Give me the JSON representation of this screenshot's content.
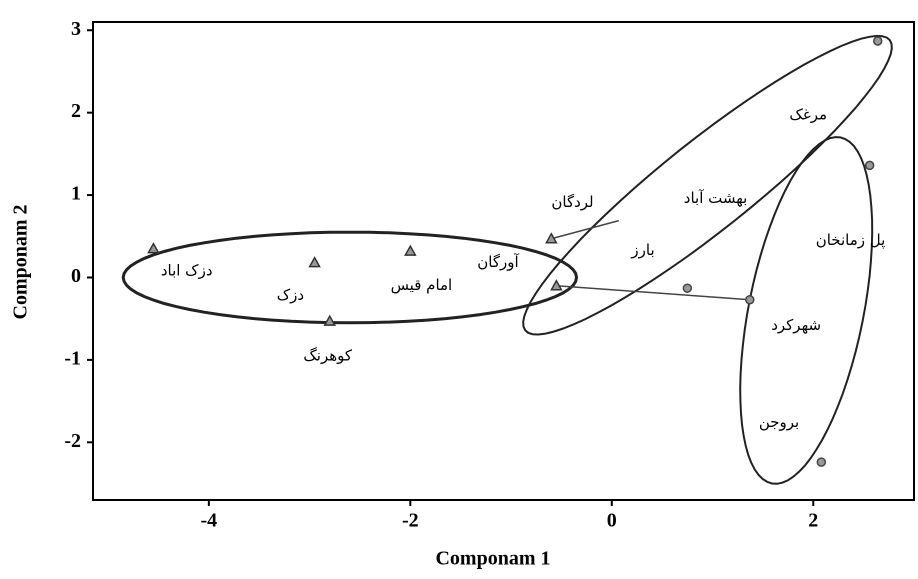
{
  "chart_data": {
    "type": "scatter",
    "xlabel": "Componam 1",
    "ylabel": "Componam 2",
    "xlim": [
      -5.15,
      3.0
    ],
    "ylim": [
      -2.7,
      3.1
    ],
    "xticks": [
      -4,
      -2,
      0,
      2
    ],
    "yticks": [
      -2,
      -1,
      0,
      1,
      2,
      3
    ],
    "series": [
      {
        "marker": "triangle",
        "color": "#333333",
        "x": [
          -4.55,
          -2.95,
          -2.0,
          -2.8,
          -0.6,
          -0.55
        ],
        "values": [
          0.35,
          0.18,
          0.32,
          -0.53,
          0.47,
          -0.1
        ]
      },
      {
        "marker": "circle",
        "color": "#444444",
        "x": [
          2.64,
          2.56,
          0.75,
          1.37,
          2.08
        ],
        "values": [
          2.87,
          1.36,
          -0.13,
          -0.27,
          -2.24
        ]
      }
    ],
    "ellipses": [
      {
        "center": [
          -2.6,
          0
        ],
        "a": [
          2.25,
          0
        ],
        "b": [
          0,
          0.55
        ],
        "width": 3
      },
      {
        "center": [
          0.95,
          1.12
        ],
        "a": [
          1.81,
          1.76
        ],
        "b": [
          0.27,
          -0.43
        ],
        "width": 2
      },
      {
        "center": [
          1.93,
          -0.4
        ],
        "a": [
          0.34,
          2.1
        ],
        "b": [
          0.56,
          -0.13
        ],
        "width": 2
      }
    ],
    "segments": [
      {
        "from": [
          -0.6,
          0.47
        ],
        "to": [
          0.07,
          0.69
        ]
      },
      {
        "from": [
          -0.55,
          -0.1
        ],
        "to": [
          1.37,
          -0.27
        ]
      }
    ],
    "annotations": [
      {
        "text": "مرغک",
        "x": 1.95,
        "y": 1.97
      },
      {
        "text": "بهشت آباد",
        "x": 1.03,
        "y": 0.96
      },
      {
        "text": "لردگان",
        "x": -0.39,
        "y": 0.91
      },
      {
        "text": "پل زمانخان",
        "x": 2.37,
        "y": 0.45
      },
      {
        "text": "بارز",
        "x": 0.31,
        "y": 0.33
      },
      {
        "text": "آورگان",
        "x": -1.13,
        "y": 0.18
      },
      {
        "text": "امام قیس",
        "x": -1.89,
        "y": -0.1
      },
      {
        "text": "دزک اباد",
        "x": -4.22,
        "y": 0.08
      },
      {
        "text": "دزک",
        "x": -3.19,
        "y": -0.22
      },
      {
        "text": "کوهرنگ",
        "x": -2.82,
        "y": -0.95
      },
      {
        "text": "شهرکرد",
        "x": 1.83,
        "y": -0.58
      },
      {
        "text": "بروجن",
        "x": 1.66,
        "y": -1.76
      }
    ]
  }
}
